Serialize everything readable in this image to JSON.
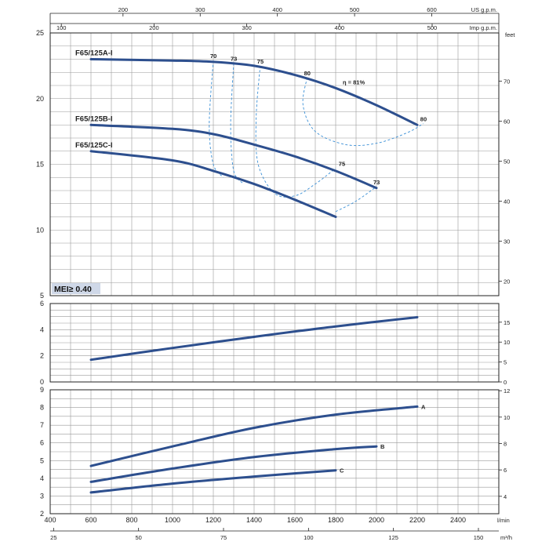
{
  "chart_data": [
    {
      "type": "line",
      "title": "",
      "xlabel": "l/min",
      "xlim": [
        400,
        2600
      ],
      "x_ticks": [
        400,
        600,
        800,
        1000,
        1200,
        1400,
        1600,
        1800,
        2000,
        2200,
        2400
      ],
      "x_unit": "l/min",
      "secondary_x_m3h": {
        "unit": "m³/h",
        "ticks": [
          25,
          50,
          75,
          100,
          125,
          150
        ]
      },
      "secondary_x_usgpm": {
        "unit": "US g.p.m.",
        "ticks": [
          200,
          300,
          400,
          500,
          600
        ]
      },
      "secondary_x_impgpm": {
        "unit": "Imp g.p.m.",
        "ticks": [
          100,
          200,
          300,
          400,
          500
        ]
      },
      "ylim": [
        5,
        25
      ],
      "y_ticks": [
        5,
        10,
        15,
        20,
        25
      ],
      "secondary_y": {
        "unit": "feet",
        "ticks": [
          20,
          30,
          40,
          50,
          60,
          70
        ],
        "ylim": [
          16.4,
          82.0
        ]
      },
      "badge": "MEI≥ 0.40",
      "series": [
        {
          "name": "F65/125A-I",
          "x": [
            600,
            1000,
            1200,
            1400,
            1600,
            1800,
            2000,
            2200
          ],
          "y": [
            23.0,
            22.9,
            22.8,
            22.5,
            21.8,
            20.8,
            19.5,
            18.0
          ]
        },
        {
          "name": "F65/125B-I",
          "x": [
            600,
            1000,
            1200,
            1400,
            1600,
            1800,
            2000
          ],
          "y": [
            18.0,
            17.7,
            17.3,
            16.5,
            15.6,
            14.5,
            13.2
          ]
        },
        {
          "name": "F65/125C-I",
          "x": [
            600,
            1000,
            1200,
            1400,
            1600,
            1800
          ],
          "y": [
            16.0,
            15.3,
            14.5,
            13.5,
            12.3,
            11.0
          ]
        }
      ],
      "efficiency_labels": [
        {
          "label": "70",
          "x": 1200,
          "y": 22.9
        },
        {
          "label": "73",
          "x": 1300,
          "y": 22.7
        },
        {
          "label": "75",
          "x": 1430,
          "y": 22.5
        },
        {
          "label": "80",
          "x": 1660,
          "y": 21.6
        },
        {
          "label": "η = 81%",
          "x": 1850,
          "y": 20.9
        },
        {
          "label": "80",
          "x": 2230,
          "y": 18.1
        },
        {
          "label": "75",
          "x": 1830,
          "y": 14.7
        },
        {
          "label": "73",
          "x": 2000,
          "y": 13.3
        }
      ],
      "efficiency_contours": [
        {
          "label": "70",
          "x": [
            1200,
            1180,
            1200,
            1250
          ],
          "y": [
            22.9,
            18.0,
            15.0,
            14.0
          ]
        },
        {
          "label": "73",
          "x": [
            1300,
            1285,
            1300,
            1350
          ],
          "y": [
            22.7,
            18.0,
            14.5,
            13.5
          ]
        },
        {
          "label": "75",
          "x": [
            1430,
            1410,
            1420,
            1500,
            1600,
            1700,
            1800
          ],
          "y": [
            22.5,
            18.5,
            15.0,
            12.8,
            12.6,
            13.5,
            14.7
          ]
        },
        {
          "label": "80",
          "x": [
            1660,
            1640,
            1700,
            1850,
            2000,
            2150,
            2230
          ],
          "y": [
            21.6,
            19.5,
            17.5,
            16.5,
            16.6,
            17.4,
            18.1
          ]
        },
        {
          "label": "73",
          "x": [
            1800,
            1900,
            2000
          ],
          "y": [
            11.4,
            12.2,
            13.3
          ]
        }
      ]
    },
    {
      "type": "line",
      "title": "",
      "xlim": [
        400,
        2600
      ],
      "ylim": [
        0,
        6
      ],
      "y_ticks": [
        0,
        2,
        4,
        6
      ],
      "secondary_y": {
        "ticks": [
          0,
          5,
          10,
          15
        ],
        "ylim": [
          0,
          19.7
        ]
      },
      "series": [
        {
          "name": "",
          "x": [
            600,
            1000,
            1400,
            1800,
            2200
          ],
          "y": [
            1.7,
            2.6,
            3.45,
            4.25,
            4.95
          ]
        }
      ]
    },
    {
      "type": "line",
      "title": "",
      "xlim": [
        400,
        2600
      ],
      "ylim": [
        2,
        9
      ],
      "y_ticks": [
        2,
        3,
        4,
        5,
        6,
        7,
        8,
        9
      ],
      "secondary_y": {
        "ticks": [
          4,
          6,
          8,
          10,
          12
        ],
        "ylim": [
          2.7,
          12.1
        ]
      },
      "series": [
        {
          "name": "A",
          "x": [
            600,
            1000,
            1400,
            1800,
            2200
          ],
          "y": [
            4.7,
            5.8,
            6.85,
            7.6,
            8.05
          ]
        },
        {
          "name": "B",
          "x": [
            600,
            1000,
            1400,
            1800,
            2000
          ],
          "y": [
            3.8,
            4.55,
            5.2,
            5.65,
            5.8
          ]
        },
        {
          "name": "C",
          "x": [
            600,
            1000,
            1400,
            1800
          ],
          "y": [
            3.2,
            3.7,
            4.1,
            4.45
          ]
        }
      ]
    }
  ]
}
